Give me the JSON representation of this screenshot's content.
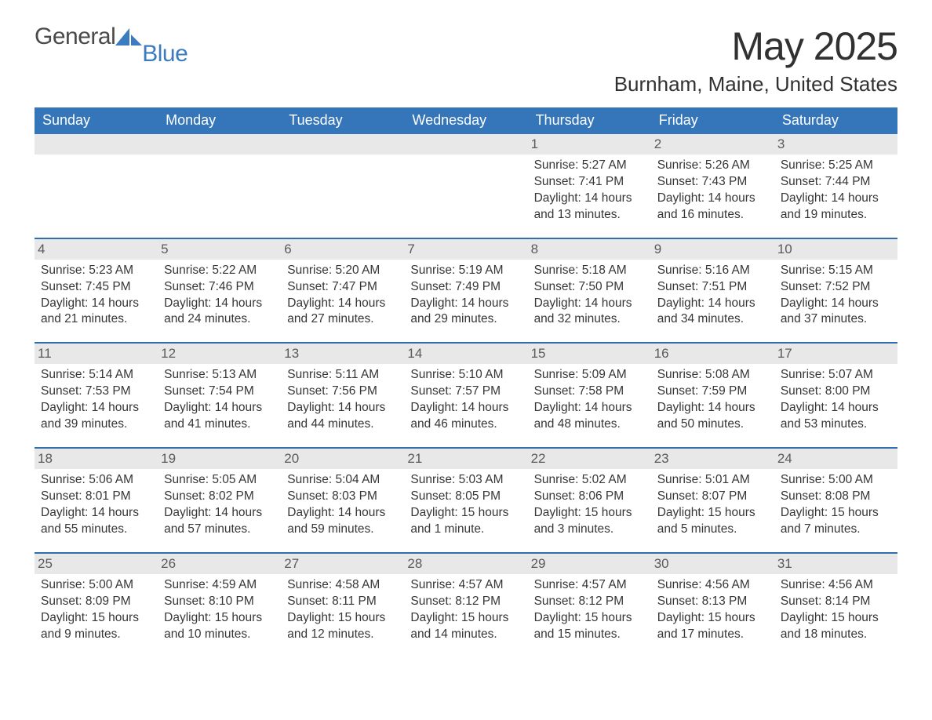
{
  "brand": {
    "word1": "General",
    "word2": "Blue",
    "mark_color": "#3b7bbf"
  },
  "title": "May 2025",
  "location": "Burnham, Maine, United States",
  "colors": {
    "brand_blue": "#3b7bbf",
    "header_blue": "#3576ba",
    "week_rule_blue": "#2f6fae",
    "row_alt_gray": "#e8e8e8",
    "text_dark": "#313131"
  },
  "weekdays": [
    "Sunday",
    "Monday",
    "Tuesday",
    "Wednesday",
    "Thursday",
    "Friday",
    "Saturday"
  ],
  "weeks": [
    [
      null,
      null,
      null,
      null,
      {
        "n": "1",
        "sunrise": "5:27 AM",
        "sunset": "7:41 PM",
        "daylight": "14 hours and 13 minutes."
      },
      {
        "n": "2",
        "sunrise": "5:26 AM",
        "sunset": "7:43 PM",
        "daylight": "14 hours and 16 minutes."
      },
      {
        "n": "3",
        "sunrise": "5:25 AM",
        "sunset": "7:44 PM",
        "daylight": "14 hours and 19 minutes."
      }
    ],
    [
      {
        "n": "4",
        "sunrise": "5:23 AM",
        "sunset": "7:45 PM",
        "daylight": "14 hours and 21 minutes."
      },
      {
        "n": "5",
        "sunrise": "5:22 AM",
        "sunset": "7:46 PM",
        "daylight": "14 hours and 24 minutes."
      },
      {
        "n": "6",
        "sunrise": "5:20 AM",
        "sunset": "7:47 PM",
        "daylight": "14 hours and 27 minutes."
      },
      {
        "n": "7",
        "sunrise": "5:19 AM",
        "sunset": "7:49 PM",
        "daylight": "14 hours and 29 minutes."
      },
      {
        "n": "8",
        "sunrise": "5:18 AM",
        "sunset": "7:50 PM",
        "daylight": "14 hours and 32 minutes."
      },
      {
        "n": "9",
        "sunrise": "5:16 AM",
        "sunset": "7:51 PM",
        "daylight": "14 hours and 34 minutes."
      },
      {
        "n": "10",
        "sunrise": "5:15 AM",
        "sunset": "7:52 PM",
        "daylight": "14 hours and 37 minutes."
      }
    ],
    [
      {
        "n": "11",
        "sunrise": "5:14 AM",
        "sunset": "7:53 PM",
        "daylight": "14 hours and 39 minutes."
      },
      {
        "n": "12",
        "sunrise": "5:13 AM",
        "sunset": "7:54 PM",
        "daylight": "14 hours and 41 minutes."
      },
      {
        "n": "13",
        "sunrise": "5:11 AM",
        "sunset": "7:56 PM",
        "daylight": "14 hours and 44 minutes."
      },
      {
        "n": "14",
        "sunrise": "5:10 AM",
        "sunset": "7:57 PM",
        "daylight": "14 hours and 46 minutes."
      },
      {
        "n": "15",
        "sunrise": "5:09 AM",
        "sunset": "7:58 PM",
        "daylight": "14 hours and 48 minutes."
      },
      {
        "n": "16",
        "sunrise": "5:08 AM",
        "sunset": "7:59 PM",
        "daylight": "14 hours and 50 minutes."
      },
      {
        "n": "17",
        "sunrise": "5:07 AM",
        "sunset": "8:00 PM",
        "daylight": "14 hours and 53 minutes."
      }
    ],
    [
      {
        "n": "18",
        "sunrise": "5:06 AM",
        "sunset": "8:01 PM",
        "daylight": "14 hours and 55 minutes."
      },
      {
        "n": "19",
        "sunrise": "5:05 AM",
        "sunset": "8:02 PM",
        "daylight": "14 hours and 57 minutes."
      },
      {
        "n": "20",
        "sunrise": "5:04 AM",
        "sunset": "8:03 PM",
        "daylight": "14 hours and 59 minutes."
      },
      {
        "n": "21",
        "sunrise": "5:03 AM",
        "sunset": "8:05 PM",
        "daylight": "15 hours and 1 minute."
      },
      {
        "n": "22",
        "sunrise": "5:02 AM",
        "sunset": "8:06 PM",
        "daylight": "15 hours and 3 minutes."
      },
      {
        "n": "23",
        "sunrise": "5:01 AM",
        "sunset": "8:07 PM",
        "daylight": "15 hours and 5 minutes."
      },
      {
        "n": "24",
        "sunrise": "5:00 AM",
        "sunset": "8:08 PM",
        "daylight": "15 hours and 7 minutes."
      }
    ],
    [
      {
        "n": "25",
        "sunrise": "5:00 AM",
        "sunset": "8:09 PM",
        "daylight": "15 hours and 9 minutes."
      },
      {
        "n": "26",
        "sunrise": "4:59 AM",
        "sunset": "8:10 PM",
        "daylight": "15 hours and 10 minutes."
      },
      {
        "n": "27",
        "sunrise": "4:58 AM",
        "sunset": "8:11 PM",
        "daylight": "15 hours and 12 minutes."
      },
      {
        "n": "28",
        "sunrise": "4:57 AM",
        "sunset": "8:12 PM",
        "daylight": "15 hours and 14 minutes."
      },
      {
        "n": "29",
        "sunrise": "4:57 AM",
        "sunset": "8:12 PM",
        "daylight": "15 hours and 15 minutes."
      },
      {
        "n": "30",
        "sunrise": "4:56 AM",
        "sunset": "8:13 PM",
        "daylight": "15 hours and 17 minutes."
      },
      {
        "n": "31",
        "sunrise": "4:56 AM",
        "sunset": "8:14 PM",
        "daylight": "15 hours and 18 minutes."
      }
    ]
  ],
  "labels": {
    "sunrise": "Sunrise:",
    "sunset": "Sunset:",
    "daylight": "Daylight:"
  }
}
